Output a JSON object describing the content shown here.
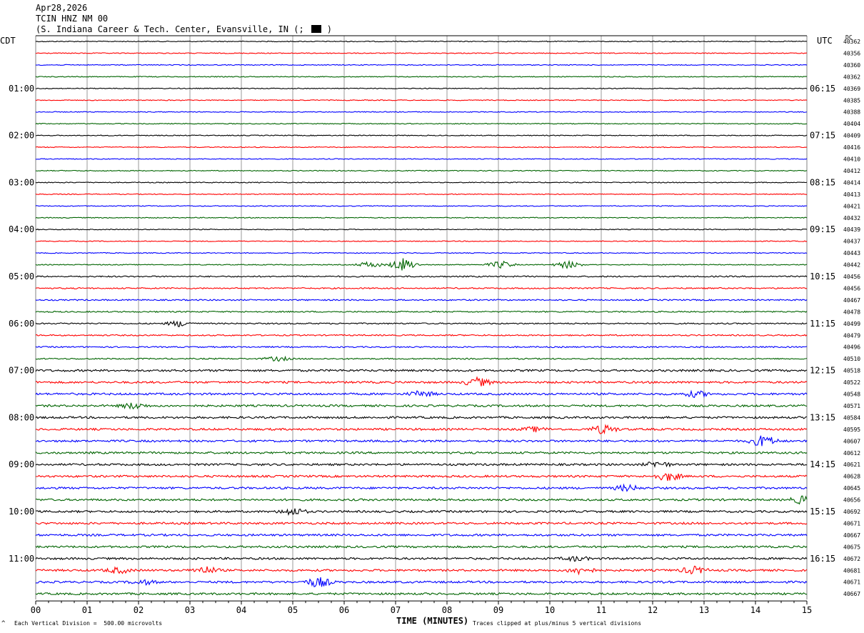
{
  "header": {
    "date": "Apr28,2026",
    "station": "TCIN HNZ NM 00",
    "location": "(S. Indiana Career & Tech. Center, Evansville, IN (;",
    "location_suffix": ")"
  },
  "labels": {
    "left_tz": "CDT",
    "right_tz": "UTC",
    "dc": "DC",
    "xlabel": "TIME (MINUTES)",
    "vertical_division": "Each Vertical Division =  500.00 microvolts",
    "clip_note": "Traces clipped at plus/minus 5 vertical divisions",
    "corner_mark": "^"
  },
  "colors": {
    "trace_cycle": [
      "#000000",
      "#ff0000",
      "#0000ff",
      "#006400"
    ],
    "grid": "#808080"
  },
  "chart_data": {
    "type": "line",
    "xlim": [
      0,
      15
    ],
    "x_ticks": [
      "00",
      "01",
      "02",
      "03",
      "04",
      "05",
      "06",
      "07",
      "08",
      "09",
      "10",
      "11",
      "12",
      "13",
      "14",
      "15"
    ],
    "left_time_labels": [
      "01:00",
      "02:00",
      "03:00",
      "04:00",
      "05:00",
      "06:00",
      "07:00",
      "08:00",
      "09:00",
      "10:00",
      "11:00"
    ],
    "right_time_labels": [
      "06:15",
      "07:15",
      "08:15",
      "09:15",
      "10:15",
      "11:15",
      "12:15",
      "13:15",
      "14:15",
      "15:15",
      "16:15"
    ],
    "dc_offsets": [
      40362,
      40356,
      40360,
      40362,
      40369,
      40385,
      40388,
      40404,
      40409,
      40416,
      40410,
      40412,
      40414,
      40413,
      40421,
      40432,
      40439,
      40437,
      40443,
      40442,
      40456,
      40456,
      40467,
      40478,
      40499,
      40479,
      40496,
      40510,
      40518,
      40522,
      40548,
      40571,
      40584,
      40595,
      40607,
      40612,
      40621,
      40628,
      40645,
      40656,
      40692,
      40671,
      40667,
      40675,
      40672,
      40681,
      40671,
      40667
    ],
    "trace_count": 48,
    "events": [
      {
        "trace": 19,
        "minute": 7.15,
        "amplitude": 9
      },
      {
        "trace": 19,
        "minute": 10.35,
        "amplitude": 5
      },
      {
        "trace": 19,
        "minute": 6.5,
        "amplitude": 4
      },
      {
        "trace": 19,
        "minute": 9.05,
        "amplitude": 5
      },
      {
        "trace": 24,
        "minute": 2.8,
        "amplitude": 4
      },
      {
        "trace": 27,
        "minute": 4.7,
        "amplitude": 3
      },
      {
        "trace": 29,
        "minute": 8.6,
        "amplitude": 6
      },
      {
        "trace": 30,
        "minute": 7.5,
        "amplitude": 4
      },
      {
        "trace": 30,
        "minute": 12.85,
        "amplitude": 4
      },
      {
        "trace": 31,
        "minute": 1.9,
        "amplitude": 4
      },
      {
        "trace": 33,
        "minute": 11.05,
        "amplitude": 6
      },
      {
        "trace": 33,
        "minute": 9.7,
        "amplitude": 3
      },
      {
        "trace": 34,
        "minute": 14.15,
        "amplitude": 8
      },
      {
        "trace": 36,
        "minute": 12.1,
        "amplitude": 4
      },
      {
        "trace": 37,
        "minute": 12.3,
        "amplitude": 6
      },
      {
        "trace": 38,
        "minute": 11.5,
        "amplitude": 4
      },
      {
        "trace": 39,
        "minute": 14.95,
        "amplitude": 6
      },
      {
        "trace": 40,
        "minute": 5.0,
        "amplitude": 5
      },
      {
        "trace": 44,
        "minute": 10.5,
        "amplitude": 3
      },
      {
        "trace": 45,
        "minute": 3.3,
        "amplitude": 5
      },
      {
        "trace": 45,
        "minute": 10.6,
        "amplitude": 5
      },
      {
        "trace": 45,
        "minute": 12.8,
        "amplitude": 5
      },
      {
        "trace": 45,
        "minute": 1.6,
        "amplitude": 4
      },
      {
        "trace": 46,
        "minute": 5.5,
        "amplitude": 7
      },
      {
        "trace": 46,
        "minute": 2.1,
        "amplitude": 3
      }
    ]
  }
}
